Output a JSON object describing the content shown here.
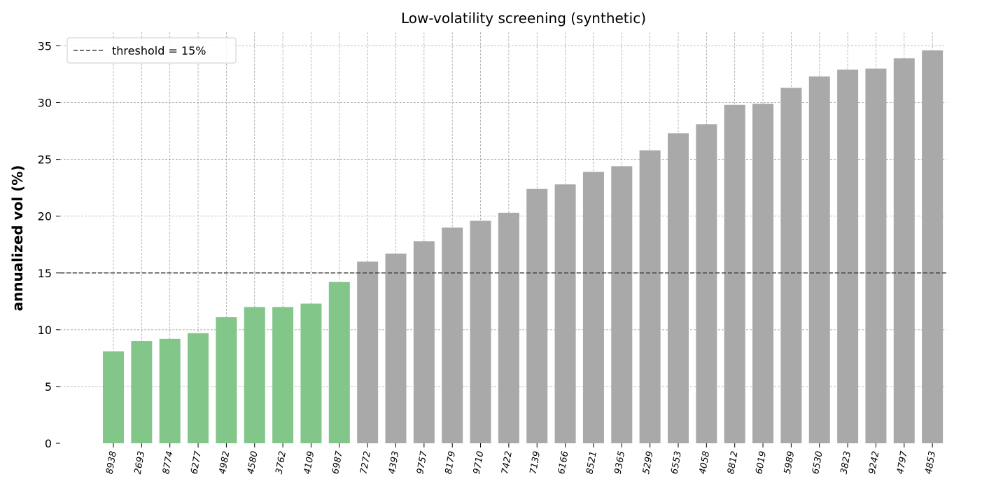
{
  "chart_data": {
    "type": "bar",
    "title": "Low-volatility screening (synthetic)",
    "xlabel": "",
    "ylabel": "annualized vol (%)",
    "ylim": [
      0,
      36.2
    ],
    "yticks": [
      0,
      5,
      10,
      15,
      20,
      25,
      30,
      35
    ],
    "grid": true,
    "legend_position": "top-left",
    "categories": [
      "8938",
      "2693",
      "8774",
      "6277",
      "4982",
      "4580",
      "3762",
      "4109",
      "6987",
      "7272",
      "4393",
      "9757",
      "8179",
      "9710",
      "7422",
      "7139",
      "6166",
      "8521",
      "9365",
      "5299",
      "6553",
      "4058",
      "8812",
      "6019",
      "5989",
      "6530",
      "3823",
      "9242",
      "4797",
      "4853"
    ],
    "values": [
      8.1,
      9.0,
      9.2,
      9.7,
      11.1,
      12.0,
      12.0,
      12.3,
      14.2,
      16.0,
      16.7,
      17.8,
      19.0,
      19.6,
      20.3,
      22.4,
      22.8,
      23.9,
      24.4,
      25.8,
      27.3,
      28.1,
      29.8,
      29.9,
      31.3,
      32.3,
      32.9,
      33.0,
      33.9,
      34.6
    ],
    "threshold": {
      "value": 15,
      "label": "threshold = 15%",
      "color": "#444444"
    },
    "colors": {
      "below_threshold": "#82c68a",
      "above_threshold": "#a9a9a9"
    }
  }
}
